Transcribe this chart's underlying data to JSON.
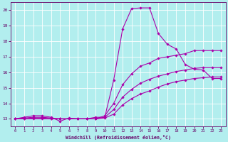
{
  "xlabel": "Windchill (Refroidissement éolien,°C)",
  "bg_color": "#b2eeee",
  "grid_color": "#ffffff",
  "line_color": "#aa00aa",
  "xlim": [
    -0.5,
    23.5
  ],
  "ylim": [
    12.5,
    20.5
  ],
  "xticks": [
    0,
    1,
    2,
    3,
    4,
    5,
    6,
    7,
    8,
    9,
    10,
    11,
    12,
    13,
    14,
    15,
    16,
    17,
    18,
    19,
    20,
    21,
    22,
    23
  ],
  "yticks": [
    13,
    14,
    15,
    16,
    17,
    18,
    19,
    20
  ],
  "line1_x": [
    0,
    1,
    2,
    3,
    4,
    5,
    6,
    7,
    8,
    9,
    10,
    11,
    12,
    13,
    14,
    15,
    16,
    17,
    18,
    19,
    20,
    21,
    22,
    23
  ],
  "line1_y": [
    13.0,
    13.1,
    13.2,
    13.2,
    13.1,
    12.85,
    13.05,
    13.0,
    13.0,
    13.1,
    13.1,
    15.5,
    18.8,
    20.1,
    20.15,
    20.15,
    18.5,
    17.8,
    17.5,
    16.5,
    16.2,
    16.15,
    15.6,
    15.6
  ],
  "line2_x": [
    0,
    1,
    2,
    3,
    4,
    5,
    6,
    7,
    8,
    9,
    10,
    11,
    12,
    13,
    14,
    15,
    16,
    17,
    18,
    19,
    20,
    21,
    22,
    23
  ],
  "line2_y": [
    13.0,
    13.05,
    13.1,
    13.1,
    13.05,
    13.0,
    13.0,
    13.0,
    13.0,
    13.0,
    13.2,
    14.0,
    15.2,
    15.9,
    16.4,
    16.6,
    16.9,
    17.0,
    17.1,
    17.2,
    17.4,
    17.4,
    17.4,
    17.4
  ],
  "line3_x": [
    0,
    1,
    2,
    3,
    4,
    5,
    6,
    7,
    8,
    9,
    10,
    11,
    12,
    13,
    14,
    15,
    16,
    17,
    18,
    19,
    20,
    21,
    22,
    23
  ],
  "line3_y": [
    13.0,
    13.0,
    13.05,
    13.05,
    13.0,
    13.0,
    13.0,
    13.0,
    13.0,
    13.0,
    13.1,
    13.6,
    14.4,
    14.9,
    15.3,
    15.55,
    15.75,
    15.9,
    16.05,
    16.15,
    16.25,
    16.3,
    16.3,
    16.3
  ],
  "line4_x": [
    0,
    1,
    2,
    3,
    4,
    5,
    6,
    7,
    8,
    9,
    10,
    11,
    12,
    13,
    14,
    15,
    16,
    17,
    18,
    19,
    20,
    21,
    22,
    23
  ],
  "line4_y": [
    13.0,
    13.0,
    13.0,
    13.0,
    13.0,
    13.0,
    13.0,
    13.0,
    13.0,
    13.0,
    13.05,
    13.3,
    13.9,
    14.3,
    14.6,
    14.8,
    15.05,
    15.25,
    15.4,
    15.5,
    15.6,
    15.65,
    15.7,
    15.7
  ]
}
